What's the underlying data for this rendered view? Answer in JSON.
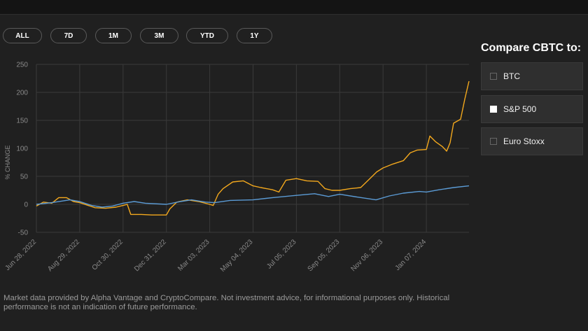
{
  "ranges": [
    {
      "label": "ALL",
      "active": true
    },
    {
      "label": "7D",
      "active": false
    },
    {
      "label": "1M",
      "active": false
    },
    {
      "label": "3M",
      "active": false
    },
    {
      "label": "YTD",
      "active": false
    },
    {
      "label": "1Y",
      "active": false
    }
  ],
  "compare": {
    "title": "Compare CBTC to:",
    "items": [
      {
        "label": "BTC",
        "checked": false
      },
      {
        "label": "S&P 500",
        "checked": true
      },
      {
        "label": "Euro Stoxx",
        "checked": false
      }
    ]
  },
  "disclaimer": "Market data provided by Alpha Vantage and CryptoCompare. Not investment advice, for informational purposes only. Historical performance is not an indication of future performance.",
  "colors": {
    "cbtc": "#f3a81d",
    "sp500": "#5b9bd5",
    "accent": "#f3a81d"
  },
  "chart_data": {
    "type": "line",
    "ylabel": "% CHANGE",
    "ylim": [
      -50,
      250
    ],
    "yticks": [
      250,
      200,
      150,
      100,
      50,
      0,
      -50
    ],
    "grid": true,
    "x_tick_labels": [
      "Jun 28, 2022",
      "Aug 29, 2022",
      "Oct 30, 2022",
      "Dec 31, 2022",
      "Mar 03, 2023",
      "May 04, 2023",
      "Jul 05, 2023",
      "Sep 05, 2023",
      "Nov 06, 2023",
      "Jan 07, 2024"
    ],
    "x_range": [
      "2022-06-28",
      "2024-03-08"
    ],
    "series": [
      {
        "color": "#f3a81d",
        "points": [
          [
            "2022-06-28",
            -3
          ],
          [
            "2022-07-08",
            4
          ],
          [
            "2022-07-20",
            2
          ],
          [
            "2022-07-30",
            12
          ],
          [
            "2022-08-10",
            12
          ],
          [
            "2022-08-20",
            5
          ],
          [
            "2022-08-29",
            3
          ],
          [
            "2022-09-10",
            -2
          ],
          [
            "2022-09-20",
            -6
          ],
          [
            "2022-10-05",
            -7
          ],
          [
            "2022-10-20",
            -5
          ],
          [
            "2022-10-30",
            -2
          ],
          [
            "2022-11-05",
            0
          ],
          [
            "2022-11-10",
            -18
          ],
          [
            "2022-11-25",
            -18
          ],
          [
            "2022-12-10",
            -19
          ],
          [
            "2022-12-31",
            -19
          ],
          [
            "2023-01-05",
            -8
          ],
          [
            "2023-01-15",
            4
          ],
          [
            "2023-01-30",
            8
          ],
          [
            "2023-02-15",
            5
          ],
          [
            "2023-03-03",
            0
          ],
          [
            "2023-03-08",
            -2
          ],
          [
            "2023-03-15",
            18
          ],
          [
            "2023-03-22",
            28
          ],
          [
            "2023-04-05",
            40
          ],
          [
            "2023-04-20",
            42
          ],
          [
            "2023-05-04",
            33
          ],
          [
            "2023-05-15",
            30
          ],
          [
            "2023-06-01",
            26
          ],
          [
            "2023-06-10",
            22
          ],
          [
            "2023-06-20",
            43
          ],
          [
            "2023-07-05",
            46
          ],
          [
            "2023-07-20",
            42
          ],
          [
            "2023-08-05",
            41
          ],
          [
            "2023-08-15",
            28
          ],
          [
            "2023-08-25",
            25
          ],
          [
            "2023-09-05",
            25
          ],
          [
            "2023-09-20",
            28
          ],
          [
            "2023-10-05",
            30
          ],
          [
            "2023-10-15",
            42
          ],
          [
            "2023-10-28",
            58
          ],
          [
            "2023-11-06",
            65
          ],
          [
            "2023-11-20",
            72
          ],
          [
            "2023-12-05",
            78
          ],
          [
            "2023-12-15",
            92
          ],
          [
            "2023-12-25",
            97
          ],
          [
            "2024-01-07",
            98
          ],
          [
            "2024-01-12",
            122
          ],
          [
            "2024-01-20",
            112
          ],
          [
            "2024-01-30",
            103
          ],
          [
            "2024-02-05",
            95
          ],
          [
            "2024-02-10",
            110
          ],
          [
            "2024-02-15",
            145
          ],
          [
            "2024-02-25",
            152
          ],
          [
            "2024-03-02",
            188
          ],
          [
            "2024-03-08",
            220
          ]
        ]
      },
      {
        "color": "#5b9bd5",
        "points": [
          [
            "2022-06-28",
            0
          ],
          [
            "2022-07-20",
            3
          ],
          [
            "2022-08-15",
            8
          ],
          [
            "2022-08-29",
            5
          ],
          [
            "2022-09-15",
            -2
          ],
          [
            "2022-09-30",
            -5
          ],
          [
            "2022-10-15",
            -3
          ],
          [
            "2022-10-30",
            2
          ],
          [
            "2022-11-15",
            5
          ],
          [
            "2022-12-01",
            2
          ],
          [
            "2022-12-31",
            0
          ],
          [
            "2023-01-20",
            5
          ],
          [
            "2023-02-05",
            8
          ],
          [
            "2023-02-25",
            4
          ],
          [
            "2023-03-10",
            3
          ],
          [
            "2023-04-01",
            7
          ],
          [
            "2023-05-04",
            8
          ],
          [
            "2023-06-01",
            12
          ],
          [
            "2023-07-05",
            16
          ],
          [
            "2023-07-31",
            19
          ],
          [
            "2023-08-20",
            14
          ],
          [
            "2023-09-05",
            18
          ],
          [
            "2023-09-30",
            13
          ],
          [
            "2023-10-27",
            8
          ],
          [
            "2023-11-15",
            15
          ],
          [
            "2023-12-05",
            20
          ],
          [
            "2023-12-28",
            23
          ],
          [
            "2024-01-07",
            22
          ],
          [
            "2024-01-25",
            26
          ],
          [
            "2024-02-15",
            30
          ],
          [
            "2024-03-08",
            33
          ]
        ]
      }
    ]
  }
}
